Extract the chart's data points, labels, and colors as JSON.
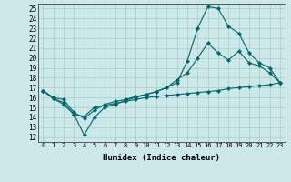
{
  "xlabel": "Humidex (Indice chaleur)",
  "xlim": [
    -0.5,
    23.5
  ],
  "ylim": [
    11.5,
    25.5
  ],
  "xticks": [
    0,
    1,
    2,
    3,
    4,
    5,
    6,
    7,
    8,
    9,
    10,
    11,
    12,
    13,
    14,
    15,
    16,
    17,
    18,
    19,
    20,
    21,
    22,
    23
  ],
  "yticks": [
    12,
    13,
    14,
    15,
    16,
    17,
    18,
    19,
    20,
    21,
    22,
    23,
    24,
    25
  ],
  "bg_color": "#cce8e8",
  "grid_color": "#aacccc",
  "line_color": "#006666",
  "line1_x": [
    0,
    1,
    2,
    3,
    4,
    5,
    6,
    7,
    8,
    9,
    10,
    11,
    12,
    13,
    14,
    15,
    16,
    17,
    18,
    19,
    20,
    21,
    22,
    23
  ],
  "line1_y": [
    16.7,
    15.9,
    15.5,
    14.3,
    14.1,
    15.0,
    15.2,
    15.4,
    15.6,
    15.8,
    16.0,
    16.1,
    16.2,
    16.3,
    16.4,
    16.5,
    16.6,
    16.7,
    16.9,
    17.0,
    17.1,
    17.2,
    17.3,
    17.5
  ],
  "line2_x": [
    0,
    1,
    2,
    3,
    4,
    5,
    6,
    7,
    8,
    9,
    10,
    11,
    12,
    13,
    14,
    15,
    16,
    17,
    18,
    19,
    20,
    21,
    22,
    23
  ],
  "line2_y": [
    16.7,
    16.0,
    15.8,
    14.5,
    13.9,
    14.7,
    15.3,
    15.6,
    15.8,
    16.1,
    16.3,
    16.6,
    17.0,
    17.8,
    18.5,
    20.0,
    21.5,
    20.5,
    19.8,
    20.7,
    19.5,
    19.2,
    18.5,
    17.5
  ],
  "line3_x": [
    0,
    1,
    2,
    3,
    4,
    5,
    6,
    7,
    8,
    9,
    10,
    11,
    12,
    13,
    14,
    15,
    16,
    17,
    18,
    19,
    20,
    21,
    22,
    23
  ],
  "line3_y": [
    16.7,
    15.9,
    15.3,
    14.3,
    12.2,
    14.0,
    15.0,
    15.3,
    15.7,
    16.0,
    16.3,
    16.6,
    17.0,
    17.5,
    19.7,
    23.0,
    25.2,
    25.0,
    23.2,
    22.5,
    20.5,
    19.5,
    19.0,
    17.5
  ]
}
